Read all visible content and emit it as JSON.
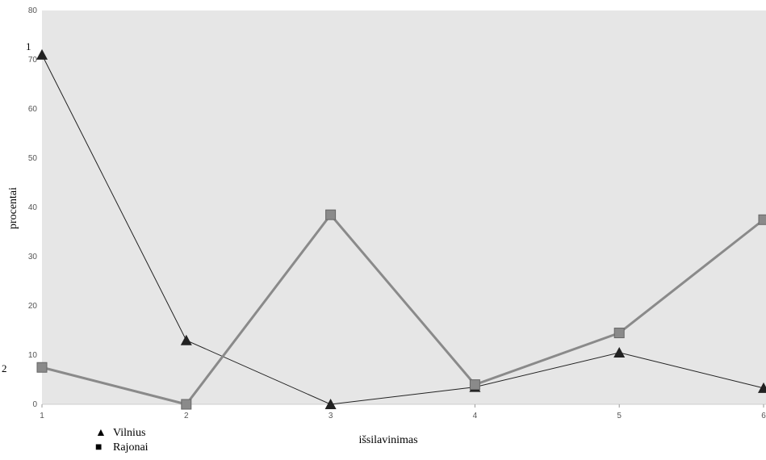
{
  "chart_data": {
    "type": "line",
    "title": "",
    "xlabel": "išsilavinimas",
    "ylabel": "procentai",
    "x": [
      1,
      2,
      3,
      4,
      5,
      6
    ],
    "xlim": [
      1,
      6
    ],
    "ylim": [
      0,
      80
    ],
    "yticks": [
      0,
      10,
      20,
      30,
      40,
      50,
      60,
      70,
      80
    ],
    "xticks": [
      1,
      2,
      3,
      4,
      5,
      6
    ],
    "grid": false,
    "legend_position": "bottom-left",
    "series": [
      {
        "name": "Vilnius",
        "marker": "triangle",
        "color": "#222222",
        "values": [
          71,
          13,
          0,
          3.5,
          10.5,
          3.3
        ]
      },
      {
        "name": "Rajonai",
        "marker": "square",
        "color": "#8a8a8a",
        "values": [
          7.5,
          0,
          38.5,
          4,
          14.5,
          37.5
        ]
      }
    ],
    "annotations": [
      "1",
      "2"
    ]
  },
  "legend": {
    "vilnius_symbol": "▲",
    "rajonai_symbol": "■"
  }
}
